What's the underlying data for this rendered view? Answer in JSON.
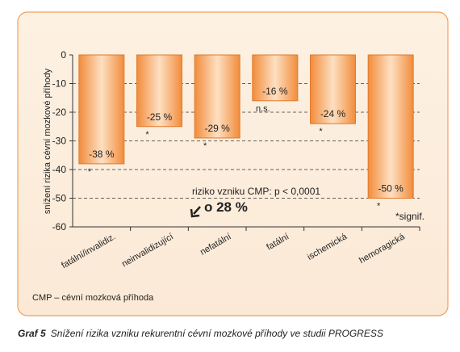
{
  "chart_data": {
    "type": "bar",
    "y_label": "snížení rizika cévní mozkové příhody",
    "categories": [
      "fatální/invalidiz.",
      "neinvalidizující",
      "nefatální",
      "fatální",
      "ischemická",
      "hemoragická"
    ],
    "values": [
      -38,
      -25,
      -29,
      -16,
      -24,
      -50
    ],
    "value_labels": [
      "-38 %",
      "-25 %",
      "-29 %",
      "-16 %",
      "-24 %",
      "-50 %"
    ],
    "markers": [
      "*",
      "*",
      "*",
      "n.s.",
      "*",
      "*"
    ],
    "color": "#f28c3c",
    "ylim": [
      0,
      -60
    ],
    "yticks": [
      0,
      -10,
      -20,
      -30,
      -40,
      -50,
      -60
    ],
    "grid": true,
    "annotations": [
      "riziko vzniku CMP:  p < 0,0001",
      "o 28 %",
      "*signif."
    ],
    "footnote": "CMP – cévní mozková příhoda"
  },
  "caption": {
    "label": "Graf 5",
    "text": "Snížení rizika vzniku rekurentní cévní mozkové příhody ve studii PROGRESS"
  }
}
